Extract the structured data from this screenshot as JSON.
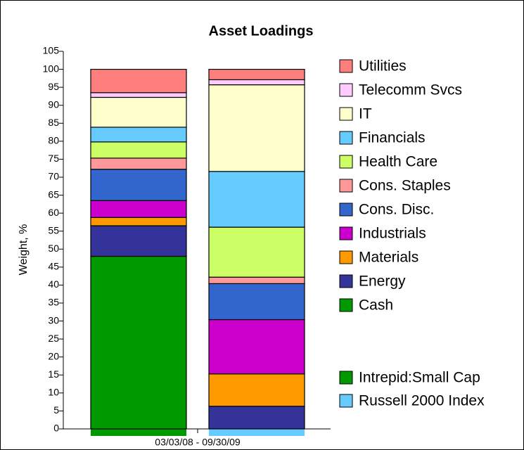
{
  "chart_data": {
    "type": "stacked_bar",
    "title": "Asset Loadings",
    "y_label": "Weight, %",
    "x_label": "03/03/08 - 09/30/09",
    "categories": [
      "Intrepid:Small Cap",
      "Russell 2000 Index"
    ],
    "category_colors": [
      "#009900",
      "#66ccff"
    ],
    "series": [
      {
        "name": "Cash",
        "color": "#009900",
        "values": [
          48.0,
          0
        ]
      },
      {
        "name": "Energy",
        "color": "#333399",
        "values": [
          8.5,
          6.3
        ]
      },
      {
        "name": "Materials",
        "color": "#ff9900",
        "values": [
          2.3,
          9.0
        ]
      },
      {
        "name": "Industrials",
        "color": "#cc00cc",
        "values": [
          4.7,
          15.1
        ]
      },
      {
        "name": "Cons. Disc.",
        "color": "#3366cc",
        "values": [
          8.7,
          10.0
        ]
      },
      {
        "name": "Cons. Staples",
        "color": "#ff9999",
        "values": [
          3.1,
          1.8
        ]
      },
      {
        "name": "Health Care",
        "color": "#ccff66",
        "values": [
          4.5,
          13.9
        ]
      },
      {
        "name": "Financials",
        "color": "#66ccff",
        "values": [
          4.1,
          15.5
        ]
      },
      {
        "name": "IT",
        "color": "#ffffcc",
        "values": [
          8.3,
          24.1
        ]
      },
      {
        "name": "Telecomm Svcs",
        "color": "#ffccff",
        "values": [
          1.3,
          1.4
        ]
      },
      {
        "name": "Utilities",
        "color": "#ff7f7f",
        "values": [
          6.5,
          2.9
        ]
      }
    ],
    "ylim": [
      0,
      105
    ],
    "yticks": [
      0,
      5,
      10,
      15,
      20,
      25,
      30,
      35,
      40,
      45,
      50,
      55,
      60,
      65,
      70,
      75,
      80,
      85,
      90,
      95,
      100,
      105
    ]
  }
}
